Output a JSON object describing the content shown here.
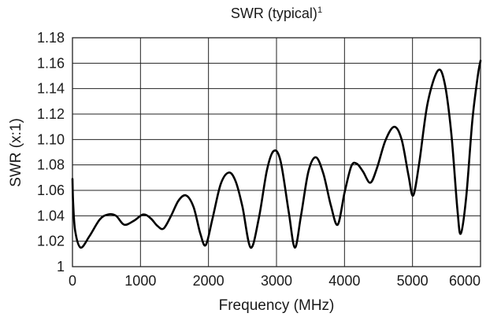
{
  "chart_data": {
    "type": "line",
    "title": "SWR (typical)",
    "title_superscript": "1",
    "xlabel": "Frequency (MHz)",
    "ylabel": "SWR (x:1)",
    "xlim": [
      0,
      6000
    ],
    "ylim": [
      1.0,
      1.18
    ],
    "x_ticks": [
      0,
      1000,
      2000,
      3000,
      4000,
      5000,
      6000
    ],
    "y_ticks": [
      1,
      1.02,
      1.04,
      1.06,
      1.08,
      1.1,
      1.12,
      1.14,
      1.16,
      1.18
    ],
    "x_tick_labels": [
      "0",
      "1000",
      "2000",
      "3000",
      "4000",
      "5000",
      "6000"
    ],
    "y_tick_labels": [
      "1",
      "1.02",
      "1.04",
      "1.06",
      "1.08",
      "1.10",
      "1.12",
      "1.14",
      "1.16",
      "1.18"
    ],
    "grid": true,
    "series": [
      {
        "x": [
          0,
          10,
          40,
          120,
          250,
          400,
          520,
          640,
          760,
          900,
          1040,
          1150,
          1250,
          1340,
          1450,
          1560,
          1670,
          1780,
          1880,
          1960,
          2060,
          2180,
          2300,
          2400,
          2500,
          2620,
          2740,
          2860,
          2960,
          3060,
          3180,
          3270,
          3360,
          3470,
          3580,
          3690,
          3800,
          3900,
          4000,
          4100,
          4180,
          4270,
          4380,
          4480,
          4600,
          4730,
          4840,
          4940,
          5010,
          5100,
          5220,
          5370,
          5470,
          5570,
          5660,
          5710,
          5790,
          5880,
          5960,
          6000
        ],
        "y": [
          1.069,
          1.05,
          1.028,
          1.015,
          1.024,
          1.037,
          1.041,
          1.04,
          1.033,
          1.036,
          1.041,
          1.038,
          1.032,
          1.03,
          1.04,
          1.052,
          1.056,
          1.047,
          1.026,
          1.017,
          1.038,
          1.065,
          1.074,
          1.067,
          1.047,
          1.015,
          1.038,
          1.076,
          1.091,
          1.083,
          1.043,
          1.015,
          1.04,
          1.075,
          1.086,
          1.073,
          1.048,
          1.033,
          1.058,
          1.079,
          1.081,
          1.075,
          1.066,
          1.078,
          1.099,
          1.11,
          1.1,
          1.072,
          1.056,
          1.082,
          1.128,
          1.154,
          1.145,
          1.105,
          1.045,
          1.026,
          1.055,
          1.115,
          1.15,
          1.162
        ]
      }
    ]
  }
}
